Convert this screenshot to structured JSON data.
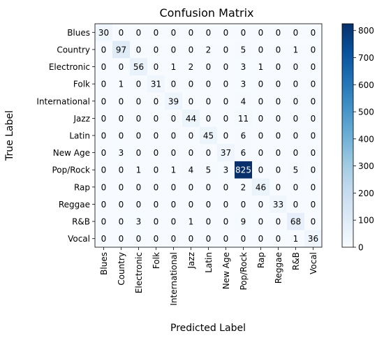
{
  "chart_data": {
    "type": "heatmap",
    "title": "Confusion Matrix",
    "xlabel": "Predicted Label",
    "ylabel": "True Label",
    "categories": [
      "Blues",
      "Country",
      "Electronic",
      "Folk",
      "International",
      "Jazz",
      "Latin",
      "New Age",
      "Pop/Rock",
      "Rap",
      "Reggae",
      "R&B",
      "Vocal"
    ],
    "matrix": [
      [
        30,
        0,
        0,
        0,
        0,
        0,
        0,
        0,
        0,
        0,
        0,
        0,
        0
      ],
      [
        0,
        97,
        0,
        0,
        0,
        0,
        2,
        0,
        5,
        0,
        0,
        1,
        0
      ],
      [
        0,
        0,
        56,
        0,
        1,
        2,
        0,
        0,
        3,
        1,
        0,
        0,
        0
      ],
      [
        0,
        1,
        0,
        31,
        0,
        0,
        0,
        0,
        3,
        0,
        0,
        0,
        0
      ],
      [
        0,
        0,
        0,
        0,
        39,
        0,
        0,
        0,
        4,
        0,
        0,
        0,
        0
      ],
      [
        0,
        0,
        0,
        0,
        0,
        44,
        0,
        0,
        11,
        0,
        0,
        0,
        0
      ],
      [
        0,
        0,
        0,
        0,
        0,
        0,
        45,
        0,
        6,
        0,
        0,
        0,
        0
      ],
      [
        0,
        3,
        0,
        0,
        0,
        0,
        0,
        37,
        6,
        0,
        0,
        0,
        0
      ],
      [
        0,
        0,
        1,
        0,
        1,
        4,
        5,
        3,
        825,
        0,
        0,
        5,
        0
      ],
      [
        0,
        0,
        0,
        0,
        0,
        0,
        0,
        0,
        2,
        46,
        0,
        0,
        0
      ],
      [
        0,
        0,
        0,
        0,
        0,
        0,
        0,
        0,
        0,
        0,
        33,
        0,
        0
      ],
      [
        0,
        0,
        3,
        0,
        0,
        1,
        0,
        0,
        9,
        0,
        0,
        68,
        0
      ],
      [
        0,
        0,
        0,
        0,
        0,
        0,
        0,
        0,
        0,
        0,
        0,
        1,
        36
      ]
    ],
    "colorbar": {
      "min": 0,
      "max": 825,
      "ticks": [
        0,
        100,
        200,
        300,
        400,
        500,
        600,
        700,
        800
      ],
      "colormap": "Blues"
    },
    "grid": false
  }
}
